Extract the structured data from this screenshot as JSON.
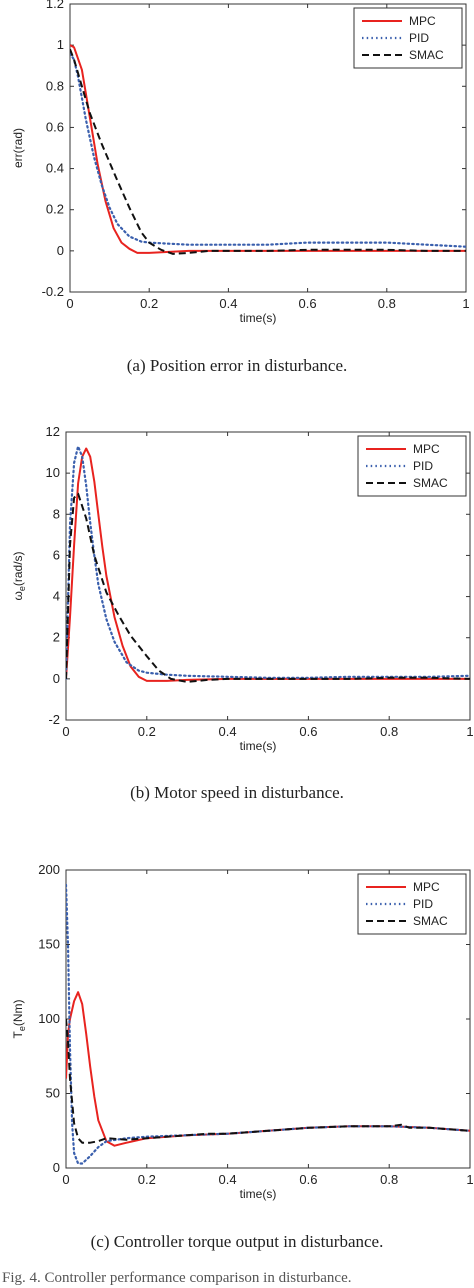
{
  "chart_data": [
    {
      "type": "line",
      "xlabel": "time(s)",
      "ylabel": "err(rad)",
      "ylabel_sub": "",
      "xlim": [
        0,
        1
      ],
      "ylim": [
        -0.2,
        1.2
      ],
      "xticks": [
        0,
        0.2,
        0.4,
        0.6,
        0.8,
        1
      ],
      "yticks": [
        -0.2,
        0,
        0.2,
        0.4,
        0.6,
        0.8,
        1,
        1.2
      ],
      "xtick_labels": [
        "0",
        "0.2",
        "0.4",
        "0.6",
        "0.8",
        "1"
      ],
      "ytick_labels": [
        "-0.2",
        "0",
        "0.2",
        "0.4",
        "0.6",
        "0.8",
        "1",
        "1.2"
      ],
      "legend_position": "top-right",
      "caption": "(a) Position error in disturbance.",
      "series": [
        {
          "name": "MPC",
          "color": "#e8231f",
          "style": "solid",
          "x": [
            0,
            0.01,
            0.03,
            0.05,
            0.07,
            0.09,
            0.11,
            0.13,
            0.15,
            0.17,
            0.2,
            0.25,
            0.3,
            0.4,
            0.5,
            0.6,
            0.7,
            0.8,
            0.9,
            1.0
          ],
          "y": [
            1.0,
            0.99,
            0.88,
            0.65,
            0.42,
            0.24,
            0.11,
            0.04,
            0.01,
            -0.01,
            -0.01,
            -0.005,
            0.0,
            0.0,
            0.0,
            0.0,
            0.0,
            0.0,
            0.0,
            0.0
          ]
        },
        {
          "name": "PID",
          "color": "#3a5fad",
          "style": "dotted",
          "x": [
            0,
            0.01,
            0.02,
            0.04,
            0.06,
            0.08,
            0.1,
            0.12,
            0.15,
            0.18,
            0.2,
            0.25,
            0.3,
            0.4,
            0.5,
            0.6,
            0.7,
            0.8,
            0.9,
            1.0
          ],
          "y": [
            0.96,
            0.93,
            0.85,
            0.64,
            0.46,
            0.32,
            0.21,
            0.13,
            0.07,
            0.045,
            0.04,
            0.035,
            0.03,
            0.03,
            0.03,
            0.04,
            0.04,
            0.04,
            0.03,
            0.02
          ]
        },
        {
          "name": "SMAC",
          "color": "#111111",
          "style": "dashed",
          "x": [
            0,
            0.01,
            0.03,
            0.05,
            0.08,
            0.1,
            0.12,
            0.15,
            0.18,
            0.2,
            0.23,
            0.26,
            0.3,
            0.35,
            0.4,
            0.5,
            0.6,
            0.7,
            0.8,
            0.9,
            1.0
          ],
          "y": [
            0.98,
            0.93,
            0.8,
            0.67,
            0.52,
            0.43,
            0.34,
            0.21,
            0.09,
            0.04,
            0.005,
            -0.015,
            -0.01,
            0.0,
            0.0,
            0.0,
            0.005,
            0.005,
            0.005,
            0.0,
            0.0
          ]
        }
      ]
    },
    {
      "type": "line",
      "xlabel": "time(s)",
      "ylabel": "ω",
      "ylabel_sub": "e",
      "ylabel_rest": "(rad/s)",
      "xlim": [
        0,
        1
      ],
      "ylim": [
        -2,
        12
      ],
      "xticks": [
        0,
        0.2,
        0.4,
        0.6,
        0.8,
        1
      ],
      "yticks": [
        -2,
        0,
        2,
        4,
        6,
        8,
        10,
        12
      ],
      "xtick_labels": [
        "0",
        "0.2",
        "0.4",
        "0.6",
        "0.8",
        "1"
      ],
      "ytick_labels": [
        "-2",
        "0",
        "2",
        "4",
        "6",
        "8",
        "10",
        "12"
      ],
      "legend_position": "top-right",
      "caption": "(b) Motor speed in disturbance.",
      "series": [
        {
          "name": "MPC",
          "color": "#e8231f",
          "style": "solid",
          "x": [
            0,
            0.01,
            0.02,
            0.03,
            0.04,
            0.05,
            0.06,
            0.07,
            0.08,
            0.09,
            0.1,
            0.12,
            0.14,
            0.16,
            0.18,
            0.2,
            0.25,
            0.3,
            0.4,
            0.5,
            0.6,
            0.7,
            0.8,
            0.9,
            1.0
          ],
          "y": [
            0,
            3,
            6.5,
            9.5,
            10.8,
            11.2,
            10.8,
            9.6,
            8.0,
            6.4,
            5.0,
            3.0,
            1.6,
            0.6,
            0.1,
            -0.1,
            -0.1,
            -0.05,
            0.0,
            0.0,
            0.0,
            0.0,
            0.0,
            0.0,
            0.0
          ]
        },
        {
          "name": "PID",
          "color": "#3a5fad",
          "style": "dotted",
          "x": [
            0,
            0.01,
            0.02,
            0.03,
            0.04,
            0.05,
            0.06,
            0.07,
            0.08,
            0.1,
            0.12,
            0.15,
            0.18,
            0.2,
            0.25,
            0.3,
            0.4,
            0.5,
            0.6,
            0.7,
            0.8,
            0.9,
            1.0
          ],
          "y": [
            0,
            7.5,
            10.5,
            11.3,
            10.8,
            9.4,
            7.6,
            6.0,
            4.6,
            2.9,
            1.8,
            0.8,
            0.4,
            0.3,
            0.2,
            0.15,
            0.1,
            0.05,
            0.05,
            0.1,
            0.1,
            0.1,
            0.15
          ]
        },
        {
          "name": "SMAC",
          "color": "#111111",
          "style": "dashed",
          "x": [
            0,
            0.01,
            0.02,
            0.03,
            0.05,
            0.07,
            0.1,
            0.13,
            0.16,
            0.2,
            0.23,
            0.26,
            0.3,
            0.35,
            0.4,
            0.5,
            0.6,
            0.7,
            0.8,
            0.9,
            1.0
          ],
          "y": [
            0,
            6.5,
            8.8,
            9.0,
            7.8,
            6.0,
            4.2,
            3.1,
            2.1,
            1.1,
            0.4,
            0.0,
            -0.15,
            -0.05,
            0.0,
            0.0,
            0.0,
            0.0,
            0.05,
            0.05,
            0.0
          ]
        }
      ]
    },
    {
      "type": "line",
      "xlabel": "time(s)",
      "ylabel": "T",
      "ylabel_sub": "e",
      "ylabel_rest": "(Nm)",
      "xlim": [
        0,
        1
      ],
      "ylim": [
        0,
        200
      ],
      "xticks": [
        0,
        0.2,
        0.4,
        0.6,
        0.8,
        1
      ],
      "yticks": [
        0,
        50,
        100,
        150,
        200
      ],
      "xtick_labels": [
        "0",
        "0.2",
        "0.4",
        "0.6",
        "0.8",
        "1"
      ],
      "ytick_labels": [
        "0",
        "50",
        "100",
        "150",
        "200"
      ],
      "legend_position": "top-right",
      "caption": "(c) Controller torque output in disturbance.",
      "series": [
        {
          "name": "MPC",
          "color": "#e8231f",
          "style": "solid",
          "x": [
            0,
            0.005,
            0.01,
            0.02,
            0.03,
            0.04,
            0.05,
            0.06,
            0.07,
            0.08,
            0.1,
            0.12,
            0.15,
            0.2,
            0.3,
            0.4,
            0.5,
            0.6,
            0.7,
            0.8,
            0.9,
            1.0
          ],
          "y": [
            60,
            90,
            100,
            112,
            118,
            110,
            90,
            68,
            48,
            32,
            18,
            15,
            17,
            20,
            22,
            23,
            25,
            27,
            28,
            28,
            27,
            25
          ]
        },
        {
          "name": "PID",
          "color": "#3a5fad",
          "style": "dotted",
          "x": [
            0,
            0.005,
            0.01,
            0.015,
            0.02,
            0.03,
            0.04,
            0.06,
            0.08,
            0.1,
            0.15,
            0.2,
            0.3,
            0.4,
            0.5,
            0.6,
            0.7,
            0.8,
            0.9,
            1.0
          ],
          "y": [
            190,
            150,
            80,
            30,
            10,
            3,
            3,
            8,
            14,
            18,
            20,
            21,
            22,
            23,
            25,
            27,
            28,
            28,
            27,
            25
          ]
        },
        {
          "name": "SMAC",
          "color": "#111111",
          "style": "dashed",
          "x": [
            0,
            0.005,
            0.01,
            0.02,
            0.03,
            0.04,
            0.06,
            0.08,
            0.1,
            0.15,
            0.2,
            0.3,
            0.35,
            0.4,
            0.5,
            0.6,
            0.7,
            0.8,
            0.83,
            0.85,
            0.9,
            1.0
          ],
          "y": [
            100,
            85,
            60,
            30,
            20,
            17,
            17,
            18,
            20,
            19,
            20,
            22,
            23,
            23,
            25,
            27,
            28,
            28,
            29,
            27,
            27,
            25
          ]
        }
      ]
    }
  ],
  "figure_fragment": "Fig. 4.  Controller performance comparison in disturbance."
}
